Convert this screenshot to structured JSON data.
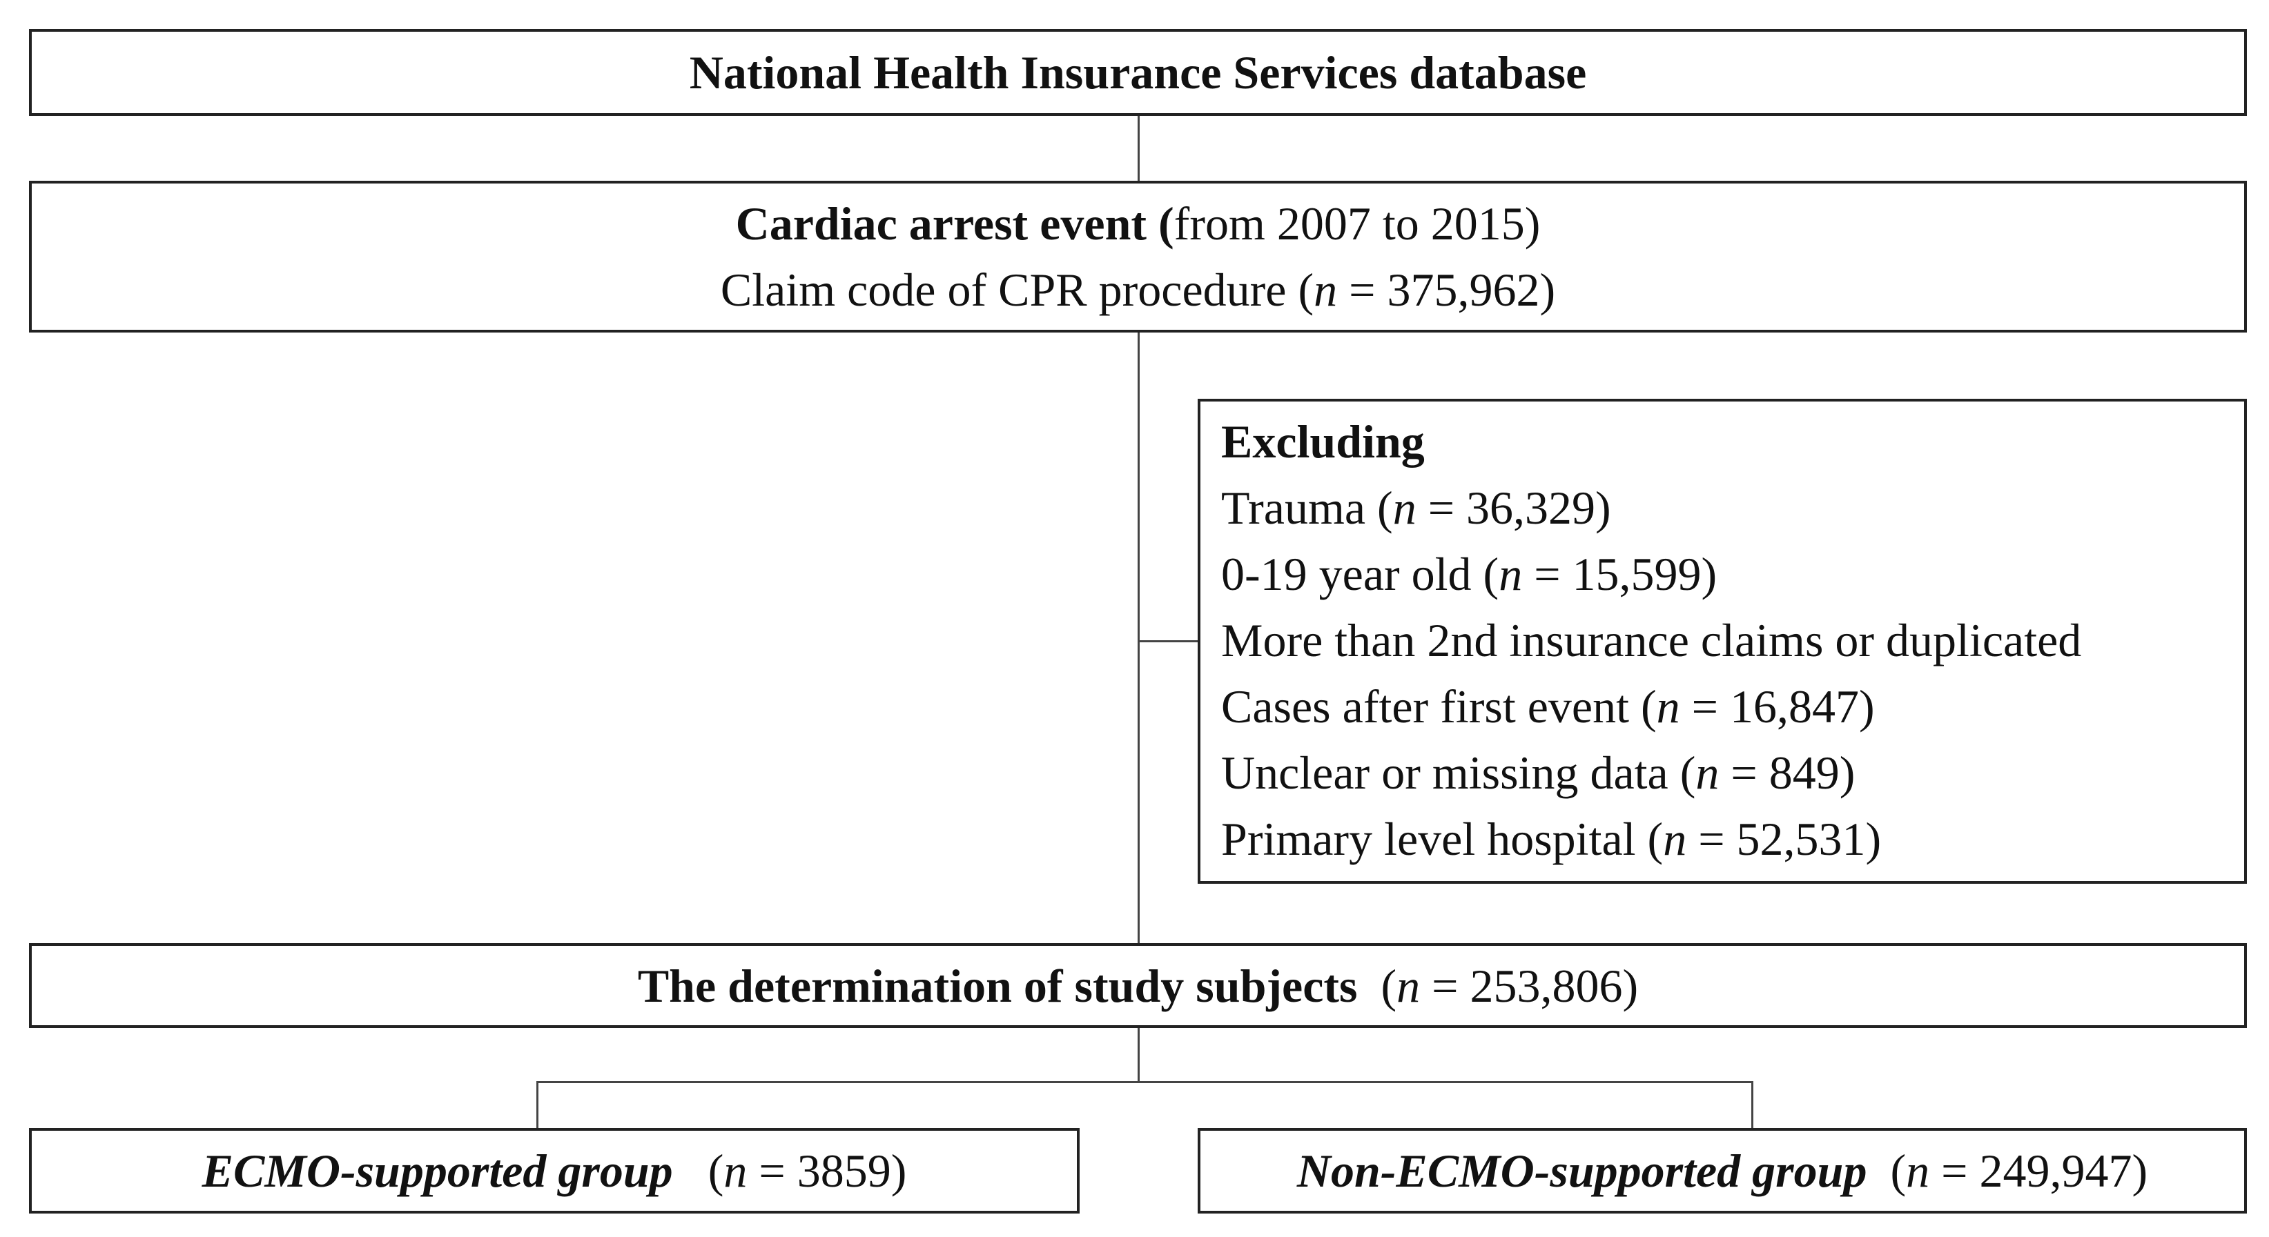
{
  "boxes": {
    "database": {
      "title": "National Health Insurance Services database"
    },
    "cardiac": {
      "title_bold": "Cardiac arrest event (",
      "title_rest": "from 2007 to 2015)",
      "line2_prefix": "Claim code of CPR procedure (",
      "n_symbol": "n",
      "line2_value": " = 375,962)"
    },
    "excluding": {
      "title": "Excluding",
      "items": [
        {
          "label": "Trauma (",
          "n": "n",
          "value": " = 36,329)"
        },
        {
          "label": "0-19 year old (",
          "n": "n",
          "value": " = 15,599)"
        },
        {
          "label": "More than 2nd insurance claims or duplicated",
          "n": "",
          "value": ""
        },
        {
          "label": "Cases after first event (",
          "n": "n",
          "value": " = 16,847)"
        },
        {
          "label": "Unclear or missing data (",
          "n": "n",
          "value": " = 849)"
        },
        {
          "label": "Primary level hospital (",
          "n": "n",
          "value": " = 52,531)"
        }
      ]
    },
    "study": {
      "title": "The determination of study subjects",
      "prefix": "  (",
      "n": "n",
      "value": " = 253,806)"
    },
    "ecmo": {
      "title": "ECMO-supported group",
      "prefix": "   (",
      "n": "n",
      "value": " = 3859)"
    },
    "non_ecmo": {
      "title": "Non-ECMO-supported group",
      "prefix": "  (",
      "n": "n",
      "value": " = 249,947)"
    }
  }
}
